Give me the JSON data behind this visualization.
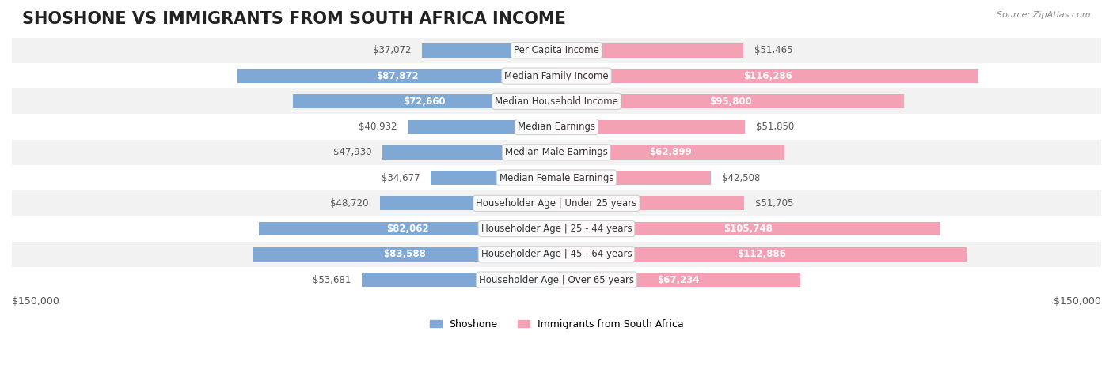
{
  "title": "SHOSHONE VS IMMIGRANTS FROM SOUTH AFRICA INCOME",
  "source": "Source: ZipAtlas.com",
  "categories": [
    "Per Capita Income",
    "Median Family Income",
    "Median Household Income",
    "Median Earnings",
    "Median Male Earnings",
    "Median Female Earnings",
    "Householder Age | Under 25 years",
    "Householder Age | 25 - 44 years",
    "Householder Age | 45 - 64 years",
    "Householder Age | Over 65 years"
  ],
  "shoshone_values": [
    37072,
    87872,
    72660,
    40932,
    47930,
    34677,
    48720,
    82062,
    83588,
    53681
  ],
  "immigrant_values": [
    51465,
    116286,
    95800,
    51850,
    62899,
    42508,
    51705,
    105748,
    112886,
    67234
  ],
  "shoshone_color": "#7fa8d4",
  "immigrant_color": "#f4a0b5",
  "shoshone_color_dark": "#5b8ec4",
  "immigrant_color_dark": "#e8607a",
  "max_value": 150000,
  "bar_height": 0.55,
  "background_color": "#ffffff",
  "row_bg_color": "#f2f2f2",
  "row_bg_alt": "#ffffff",
  "title_fontsize": 15,
  "label_fontsize": 8.5,
  "value_fontsize": 8.5,
  "legend_labels": [
    "Shoshone",
    "Immigrants from South Africa"
  ],
  "left_axis_label": "$150,000",
  "right_axis_label": "$150,000"
}
